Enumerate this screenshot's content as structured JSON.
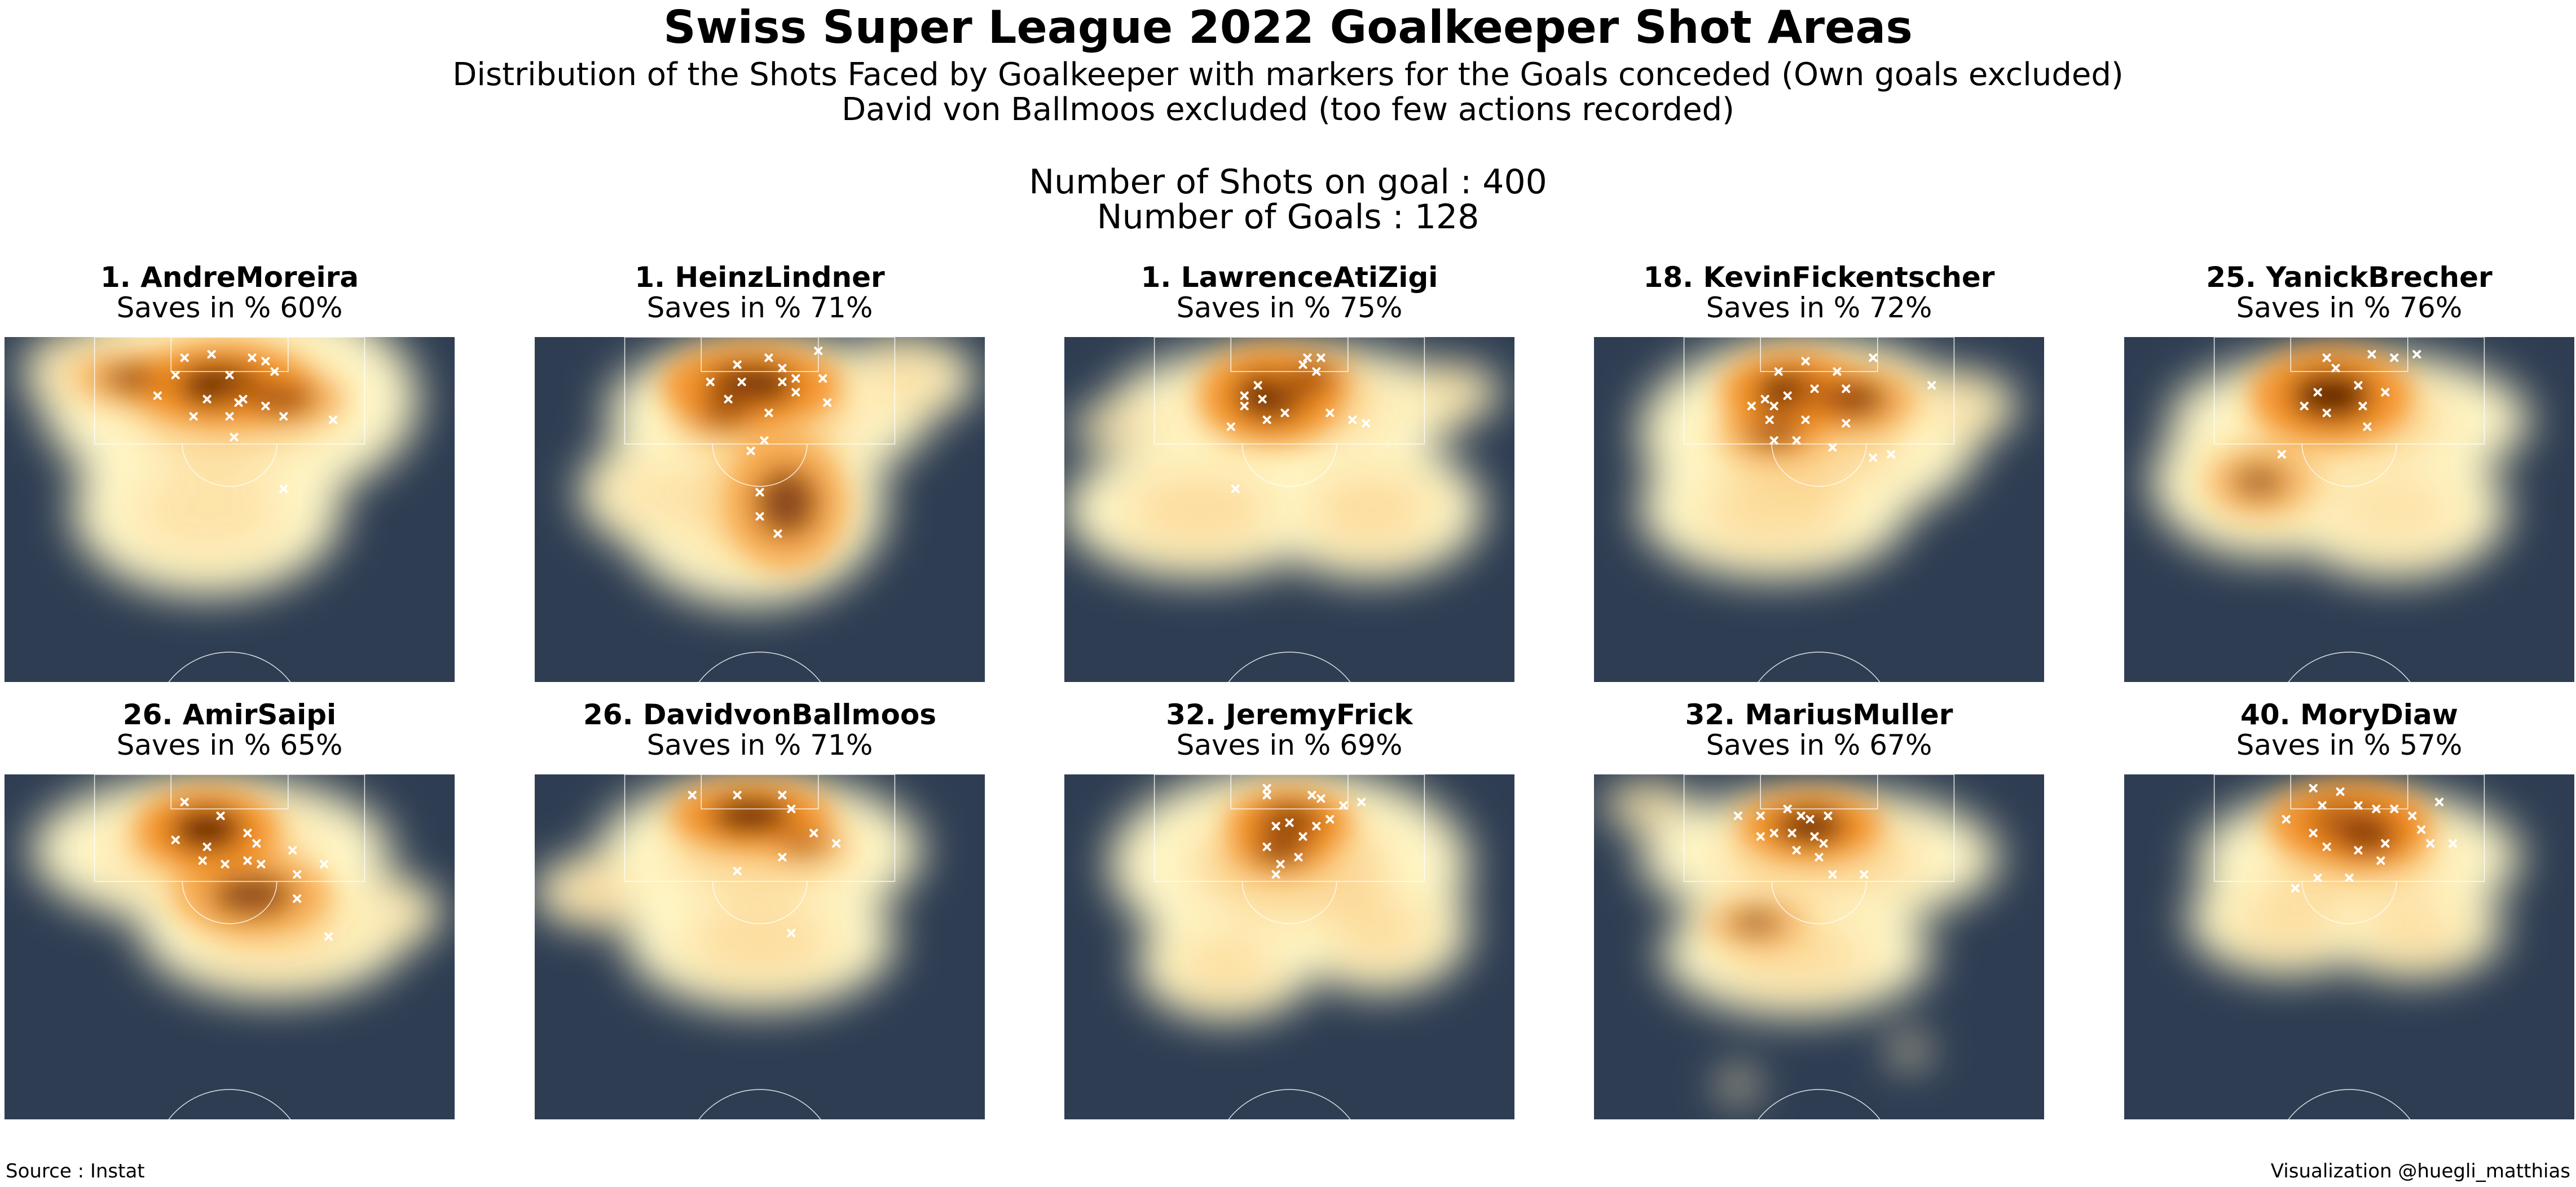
{
  "header": {
    "title": "Swiss Super League 2022 Goalkeeper Shot Areas",
    "subtitle_line1": "Distribution of the Shots Faced by Goalkeeper with markers for the Goals conceded (Own goals excluded)",
    "subtitle_line2": "David von Ballmoos excluded (too few actions recorded)",
    "shots_line": "Number of Shots on goal : 400",
    "goals_line": "Number of Goals : 128"
  },
  "footer": {
    "source": "Source : Instat",
    "credit": "Visualization @huegli_matthias"
  },
  "colors": {
    "pitch": "#2e3d52",
    "lines": "#ffffff",
    "density_low": "#fff7c8",
    "density_mid": "#f48c1e",
    "density_high": "#5a1a03",
    "goal_marker": "#ffffff"
  },
  "chart_data": {
    "type": "heatmap",
    "kind": "kde-density",
    "pitch_extent": {
      "x": [
        0,
        100
      ],
      "y": [
        0,
        100
      ]
    },
    "panels": [
      {
        "name": "1. AndreMoreira",
        "saves": "Saves in % 60%",
        "saves_pct": 60,
        "blobs": [
          [
            50,
            18,
            42,
            32,
            0.5
          ],
          [
            18,
            10,
            14,
            12,
            0.5
          ],
          [
            45,
            50,
            30,
            25,
            0.3
          ]
        ],
        "cores": [
          [
            48,
            14,
            20,
            12,
            1.0
          ],
          [
            28,
            12,
            12,
            8,
            0.6
          ],
          [
            62,
            18,
            14,
            8,
            0.6
          ]
        ],
        "goals": [
          [
            40,
            6
          ],
          [
            46,
            5
          ],
          [
            55,
            6
          ],
          [
            58,
            7
          ],
          [
            38,
            11
          ],
          [
            50,
            11
          ],
          [
            60,
            10
          ],
          [
            34,
            17
          ],
          [
            45,
            18
          ],
          [
            52,
            19
          ],
          [
            58,
            20
          ],
          [
            42,
            23
          ],
          [
            50,
            23
          ],
          [
            53,
            18
          ],
          [
            62,
            23
          ],
          [
            73,
            24
          ],
          [
            51,
            29
          ],
          [
            62,
            44
          ]
        ]
      },
      {
        "name": "1. HeinzLindner",
        "saves": "Saves in % 71%",
        "saves_pct": 71,
        "blobs": [
          [
            52,
            22,
            36,
            22,
            0.5
          ],
          [
            48,
            48,
            30,
            30,
            0.4
          ],
          [
            82,
            12,
            16,
            12,
            0.4
          ],
          [
            25,
            45,
            15,
            15,
            0.3
          ]
        ],
        "cores": [
          [
            48,
            14,
            20,
            12,
            1.0
          ],
          [
            56,
            48,
            14,
            20,
            0.7
          ],
          [
            42,
            22,
            12,
            8,
            0.5
          ]
        ],
        "goals": [
          [
            45,
            8
          ],
          [
            52,
            6
          ],
          [
            63,
            4
          ],
          [
            55,
            9
          ],
          [
            58,
            12
          ],
          [
            39,
            13
          ],
          [
            46,
            13
          ],
          [
            55,
            13
          ],
          [
            58,
            16
          ],
          [
            64,
            12
          ],
          [
            65,
            19
          ],
          [
            52,
            22
          ],
          [
            51,
            30
          ],
          [
            43,
            18
          ],
          [
            48,
            33
          ],
          [
            50,
            45
          ],
          [
            50,
            52
          ],
          [
            54,
            57
          ]
        ]
      },
      {
        "name": "1. LawrenceAtiZigi",
        "saves": "Saves in % 75%",
        "saves_pct": 75,
        "blobs": [
          [
            50,
            20,
            40,
            18,
            0.5
          ],
          [
            30,
            50,
            30,
            20,
            0.4
          ],
          [
            68,
            50,
            25,
            20,
            0.4
          ],
          [
            15,
            26,
            14,
            6,
            0.5
          ],
          [
            85,
            16,
            12,
            8,
            0.4
          ]
        ],
        "cores": [
          [
            46,
            17,
            16,
            14,
            1.0
          ],
          [
            55,
            12,
            10,
            8,
            0.6
          ]
        ],
        "goals": [
          [
            54,
            6
          ],
          [
            57,
            6
          ],
          [
            53,
            8
          ],
          [
            56,
            10
          ],
          [
            43,
            14
          ],
          [
            40,
            17
          ],
          [
            44,
            18
          ],
          [
            40,
            20
          ],
          [
            45,
            24
          ],
          [
            37,
            26
          ],
          [
            59,
            22
          ],
          [
            49,
            22
          ],
          [
            64,
            24
          ],
          [
            67,
            25
          ],
          [
            38,
            44
          ]
        ]
      },
      {
        "name": "18. KevinFickentscher",
        "saves": "Saves in % 72%",
        "saves_pct": 72,
        "blobs": [
          [
            48,
            28,
            38,
            28,
            0.5
          ],
          [
            40,
            50,
            30,
            20,
            0.4
          ],
          [
            80,
            20,
            14,
            10,
            0.4
          ]
        ],
        "cores": [
          [
            44,
            16,
            16,
            12,
            1.0
          ],
          [
            58,
            18,
            14,
            10,
            0.7
          ],
          [
            40,
            28,
            12,
            8,
            0.6
          ]
        ],
        "goals": [
          [
            41,
            10
          ],
          [
            47,
            7
          ],
          [
            54,
            10
          ],
          [
            62,
            6
          ],
          [
            43,
            17
          ],
          [
            49,
            15
          ],
          [
            56,
            15
          ],
          [
            38,
            18
          ],
          [
            35,
            20
          ],
          [
            40,
            20
          ],
          [
            47,
            24
          ],
          [
            39,
            24
          ],
          [
            56,
            25
          ],
          [
            45,
            30
          ],
          [
            40,
            30
          ],
          [
            66,
            34
          ],
          [
            62,
            35
          ],
          [
            75,
            14
          ],
          [
            53,
            32
          ]
        ]
      },
      {
        "name": "25. YanickBrecher",
        "saves": "Saves in % 76%",
        "saves_pct": 76,
        "blobs": [
          [
            50,
            24,
            40,
            20,
            0.5
          ],
          [
            32,
            42,
            26,
            22,
            0.4
          ],
          [
            60,
            50,
            25,
            20,
            0.3
          ]
        ],
        "cores": [
          [
            46,
            17,
            18,
            14,
            1.0
          ],
          [
            30,
            42,
            12,
            10,
            0.5
          ]
        ],
        "goals": [
          [
            45,
            6
          ],
          [
            55,
            5
          ],
          [
            60,
            6
          ],
          [
            65,
            5
          ],
          [
            47,
            9
          ],
          [
            43,
            16
          ],
          [
            52,
            14
          ],
          [
            58,
            16
          ],
          [
            53,
            20
          ],
          [
            45,
            22
          ],
          [
            40,
            20
          ],
          [
            35,
            34
          ],
          [
            54,
            26
          ]
        ]
      },
      {
        "name": "26. AmirSaipi",
        "saves": "Saves in % 65%",
        "saves_pct": 65,
        "blobs": [
          [
            46,
            22,
            40,
            22,
            0.5
          ],
          [
            60,
            45,
            30,
            20,
            0.4
          ],
          [
            85,
            40,
            12,
            10,
            0.3
          ]
        ],
        "cores": [
          [
            45,
            16,
            16,
            12,
            1.0
          ],
          [
            55,
            35,
            18,
            12,
            0.7
          ]
        ],
        "goals": [
          [
            40,
            8
          ],
          [
            48,
            12
          ],
          [
            38,
            19
          ],
          [
            45,
            21
          ],
          [
            44,
            25
          ],
          [
            49,
            26
          ],
          [
            54,
            17
          ],
          [
            54,
            25
          ],
          [
            56,
            20
          ],
          [
            57,
            26
          ],
          [
            64,
            22
          ],
          [
            65,
            29
          ],
          [
            71,
            26
          ],
          [
            65,
            36
          ],
          [
            72,
            47
          ]
        ]
      },
      {
        "name": "26. DavidvonBallmoos",
        "saves": "Saves in % 71%",
        "saves_pct": 71,
        "blobs": [
          [
            50,
            22,
            36,
            22,
            0.5
          ],
          [
            50,
            48,
            30,
            20,
            0.4
          ],
          [
            14,
            34,
            14,
            10,
            0.5
          ]
        ],
        "cores": [
          [
            48,
            12,
            18,
            10,
            1.0
          ],
          [
            60,
            20,
            10,
            6,
            0.5
          ]
        ],
        "goals": [
          [
            35,
            6
          ],
          [
            45,
            6
          ],
          [
            55,
            6
          ],
          [
            57,
            10
          ],
          [
            62,
            17
          ],
          [
            67,
            20
          ],
          [
            55,
            24
          ],
          [
            45,
            28
          ],
          [
            57,
            46
          ]
        ]
      },
      {
        "name": "32. JeremyFrick",
        "saves": "Saves in % 69%",
        "saves_pct": 69,
        "blobs": [
          [
            50,
            26,
            40,
            28,
            0.5
          ],
          [
            36,
            55,
            20,
            16,
            0.4
          ],
          [
            70,
            45,
            20,
            18,
            0.4
          ]
        ],
        "cores": [
          [
            50,
            14,
            14,
            10,
            1.0
          ],
          [
            48,
            22,
            12,
            8,
            0.7
          ]
        ],
        "goals": [
          [
            45,
            4
          ],
          [
            45,
            6
          ],
          [
            55,
            6
          ],
          [
            57,
            7
          ],
          [
            62,
            9
          ],
          [
            66,
            8
          ],
          [
            47,
            15
          ],
          [
            50,
            14
          ],
          [
            56,
            15
          ],
          [
            53,
            18
          ],
          [
            45,
            21
          ],
          [
            48,
            26
          ],
          [
            52,
            24
          ],
          [
            47,
            29
          ],
          [
            59,
            13
          ]
        ]
      },
      {
        "name": "32. MariusMuller",
        "saves": "Saves in % 67%",
        "saves_pct": 67,
        "blobs": [
          [
            50,
            24,
            40,
            20,
            0.5
          ],
          [
            45,
            52,
            30,
            18,
            0.4
          ],
          [
            12,
            9,
            10,
            6,
            0.5
          ],
          [
            32,
            90,
            4,
            4,
            0.5
          ],
          [
            70,
            80,
            4,
            4,
            0.5
          ]
        ],
        "cores": [
          [
            48,
            15,
            16,
            10,
            1.0
          ],
          [
            36,
            43,
            12,
            8,
            0.5
          ]
        ],
        "goals": [
          [
            32,
            12
          ],
          [
            37,
            12
          ],
          [
            43,
            10
          ],
          [
            46,
            12
          ],
          [
            48,
            13
          ],
          [
            52,
            12
          ],
          [
            44,
            17
          ],
          [
            40,
            17
          ],
          [
            37,
            18
          ],
          [
            49,
            18
          ],
          [
            51,
            20
          ],
          [
            45,
            22
          ],
          [
            50,
            24
          ],
          [
            60,
            29
          ],
          [
            53,
            29
          ]
        ]
      },
      {
        "name": "40. MoryDiaw",
        "saves": "Saves in % 57%",
        "saves_pct": 57,
        "blobs": [
          [
            52,
            24,
            36,
            20,
            0.5
          ],
          [
            36,
            42,
            22,
            16,
            0.4
          ],
          [
            64,
            45,
            20,
            14,
            0.4
          ]
        ],
        "cores": [
          [
            50,
            14,
            18,
            12,
            1.0
          ],
          [
            54,
            18,
            14,
            10,
            0.7
          ]
        ],
        "goals": [
          [
            42,
            4
          ],
          [
            48,
            5
          ],
          [
            44,
            9
          ],
          [
            52,
            9
          ],
          [
            56,
            10
          ],
          [
            60,
            10
          ],
          [
            64,
            12
          ],
          [
            70,
            8
          ],
          [
            66,
            16
          ],
          [
            68,
            20
          ],
          [
            73,
            20
          ],
          [
            36,
            13
          ],
          [
            42,
            17
          ],
          [
            45,
            21
          ],
          [
            52,
            22
          ],
          [
            58,
            20
          ],
          [
            57,
            25
          ],
          [
            50,
            30
          ],
          [
            43,
            30
          ],
          [
            38,
            33
          ]
        ]
      }
    ]
  }
}
